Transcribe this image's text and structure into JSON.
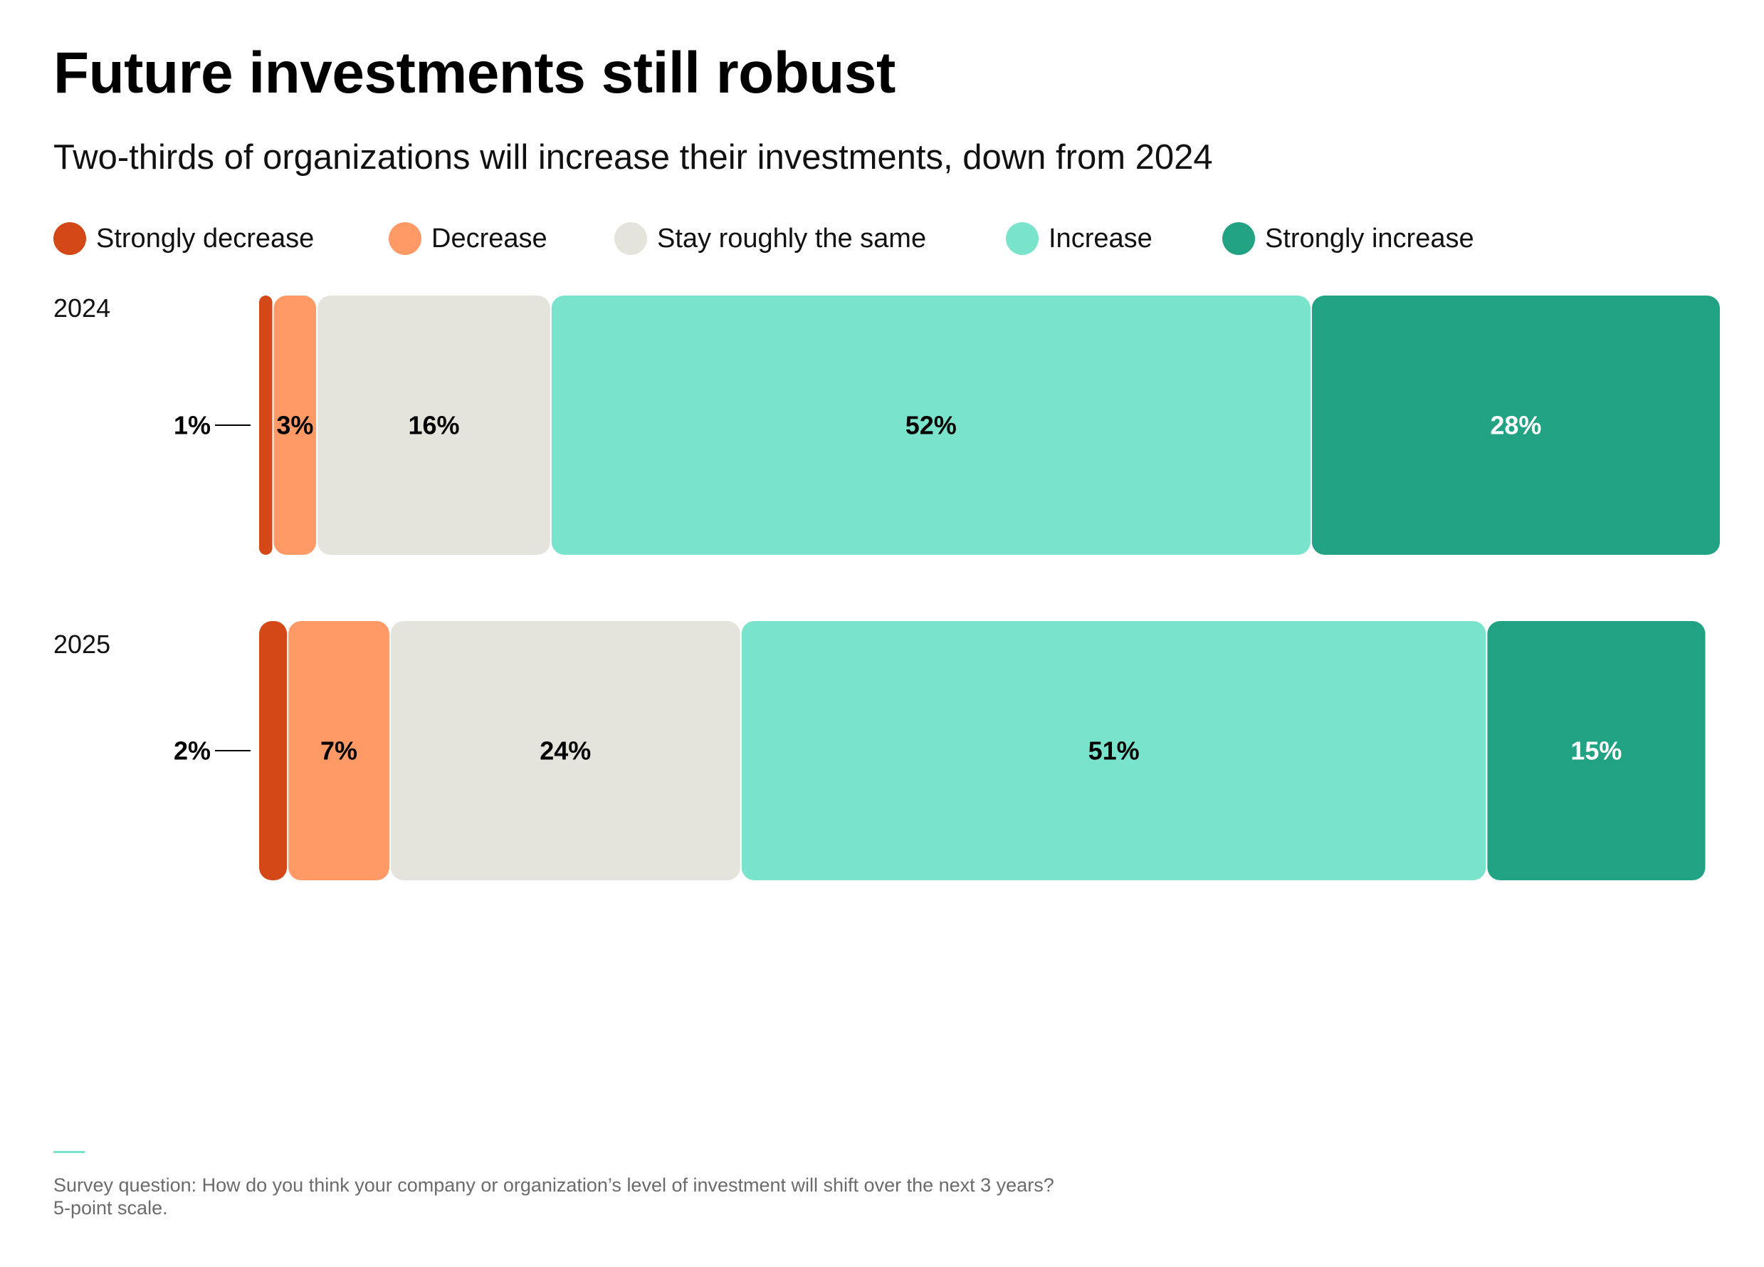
{
  "title": "Future investments still robust",
  "subtitle": "Two-thirds of organizations will increase their investments, down from 2024",
  "legend": [
    {
      "label": "Strongly decrease",
      "color": "#d44716"
    },
    {
      "label": "Decrease",
      "color": "#ff9966"
    },
    {
      "label": "Stay roughly the same",
      "color": "#e4e4dc"
    },
    {
      "label": "Increase",
      "color": "#79e3cb"
    },
    {
      "label": "Strongly increase",
      "color": "#21a283"
    }
  ],
  "chart_data": {
    "type": "bar",
    "orientation": "horizontal",
    "stacked": true,
    "categories": [
      "2024",
      "2025"
    ],
    "series": [
      {
        "name": "Strongly decrease",
        "values": [
          1,
          2
        ],
        "labels": [
          "1%",
          "2%"
        ],
        "color": "#d44716",
        "label_color": "#000000"
      },
      {
        "name": "Decrease",
        "values": [
          3,
          7
        ],
        "labels": [
          "3%",
          "7%"
        ],
        "color": "#ff9966",
        "label_color": "#000000"
      },
      {
        "name": "Stay roughly the same",
        "values": [
          16,
          24
        ],
        "labels": [
          "16%",
          "24%"
        ],
        "color": "#e4e4dc",
        "label_color": "#000000"
      },
      {
        "name": "Increase",
        "values": [
          52,
          51
        ],
        "labels": [
          "52%",
          "51%"
        ],
        "color": "#79e3cb",
        "label_color": "#000000"
      },
      {
        "name": "Strongly increase",
        "values": [
          28,
          15
        ],
        "labels": [
          "28%",
          "15%"
        ],
        "color": "#21a283",
        "label_color": "#ffffff"
      }
    ],
    "xlim": [
      0,
      100
    ],
    "grid": false,
    "legend_position": "top"
  },
  "footer": {
    "line1": "Survey question: How do you think your company or organization’s level of investment will shift over the next 3 years?",
    "line2": "5-point scale."
  }
}
